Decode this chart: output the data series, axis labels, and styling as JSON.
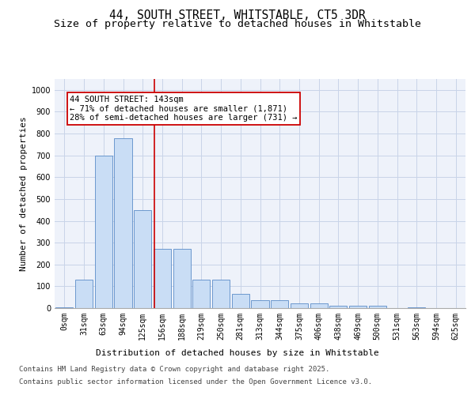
{
  "title_line1": "44, SOUTH STREET, WHITSTABLE, CT5 3DR",
  "title_line2": "Size of property relative to detached houses in Whitstable",
  "xlabel": "Distribution of detached houses by size in Whitstable",
  "ylabel": "Number of detached properties",
  "annotation_line1": "44 SOUTH STREET: 143sqm",
  "annotation_line2": "← 71% of detached houses are smaller (1,871)",
  "annotation_line3": "28% of semi-detached houses are larger (731) →",
  "footer_line1": "Contains HM Land Registry data © Crown copyright and database right 2025.",
  "footer_line2": "Contains public sector information licensed under the Open Government Licence v3.0.",
  "bin_labels": [
    "0sqm",
    "31sqm",
    "63sqm",
    "94sqm",
    "125sqm",
    "156sqm",
    "188sqm",
    "219sqm",
    "250sqm",
    "281sqm",
    "313sqm",
    "344sqm",
    "375sqm",
    "406sqm",
    "438sqm",
    "469sqm",
    "500sqm",
    "531sqm",
    "563sqm",
    "594sqm",
    "625sqm"
  ],
  "bar_values": [
    5,
    130,
    700,
    780,
    450,
    270,
    270,
    130,
    130,
    65,
    35,
    35,
    20,
    20,
    10,
    10,
    10,
    0,
    5,
    0,
    0
  ],
  "bar_color": "#c9ddf5",
  "bar_edge_color": "#5b8cc8",
  "grid_color": "#c8d4e8",
  "background_color": "#eef2fa",
  "red_line_color": "#cc0000",
  "ylim": [
    0,
    1050
  ],
  "yticks": [
    0,
    100,
    200,
    300,
    400,
    500,
    600,
    700,
    800,
    900,
    1000
  ],
  "title_fontsize": 10.5,
  "subtitle_fontsize": 9.5,
  "axis_label_fontsize": 8,
  "tick_fontsize": 7,
  "annotation_fontsize": 7.5,
  "footer_fontsize": 6.5
}
